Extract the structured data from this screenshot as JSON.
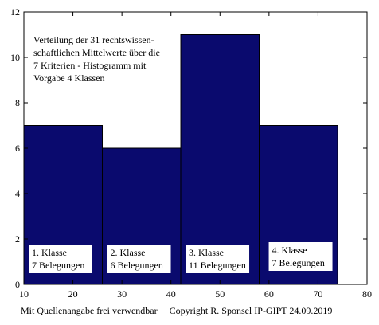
{
  "chart_data": {
    "type": "bar",
    "subtype": "histogram",
    "bins": [
      {
        "x0": 10,
        "x1": 26,
        "value": 7,
        "label_line1": "1. Klasse",
        "label_line2": "7 Belegungen"
      },
      {
        "x0": 26,
        "x1": 42,
        "value": 6,
        "label_line1": "2. Klasse",
        "label_line2": "6 Belegungen"
      },
      {
        "x0": 42,
        "x1": 58,
        "value": 11,
        "label_line1": "3. Klasse",
        "label_line2": "11 Belegungen"
      },
      {
        "x0": 58,
        "x1": 74,
        "value": 7,
        "label_line1": "4. Klasse",
        "label_line2": "7 Belegungen"
      }
    ],
    "annotation": [
      "Verteilung der 31 rechtswissen-",
      "schaftlichen Mittelwerte über die",
      "7 Kriterien - Histogramm mit",
      "Vorgabe 4 Klassen"
    ],
    "xlim": [
      10,
      80
    ],
    "ylim": [
      0,
      12
    ],
    "xticks": [
      10,
      20,
      30,
      40,
      50,
      60,
      70,
      80
    ],
    "yticks": [
      0,
      2,
      4,
      6,
      8,
      10,
      12
    ],
    "bar_color": "#0a0a6e",
    "grid": false
  },
  "footer": {
    "left": "Mit Quellenangabe frei verwendbar",
    "right": "Copyright R. Sponsel IP-GIPT 24.09.2019"
  }
}
